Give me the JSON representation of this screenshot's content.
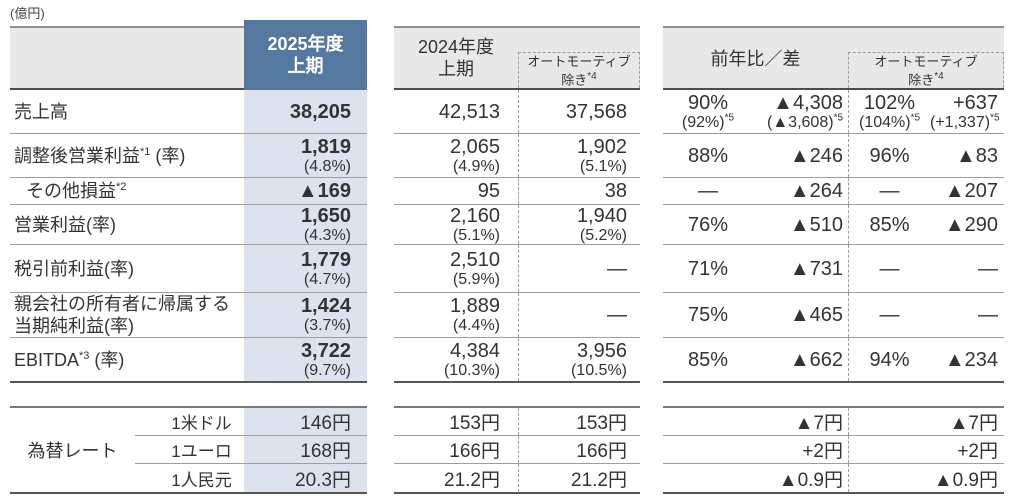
{
  "unit": "(億円)",
  "colors": {
    "header_blue": "#55789F",
    "highlight_col_bg": "#DCE3EE",
    "header_gray_bg": "#E8E8E8"
  },
  "headers": {
    "fy2025": {
      "line1": "2025年度",
      "line2": "上期"
    },
    "fy2024": {
      "line1": "2024年度",
      "line2": "上期"
    },
    "ex_auto": {
      "line1": "オートモーティブ",
      "line2": "除き",
      "sup": "*4"
    },
    "yoy": "前年比／差"
  },
  "rows": [
    {
      "id": "net-sales",
      "label": {
        "text": "売上高"
      },
      "cells": {
        "fy2025": {
          "value": "38,205"
        },
        "fy2024": {
          "value": "42,513"
        },
        "fy2024_ex_auto": {
          "value": "37,568"
        },
        "yoy_ratio": {
          "value": "90%",
          "sub": "(92%)",
          "sub_sup": "*5"
        },
        "yoy_diff": {
          "value": "▲4,308",
          "sub": "(▲3,608)",
          "sub_sup": "*5"
        },
        "yoy_ex_ratio": {
          "value": "102%",
          "sub": "(104%)",
          "sub_sup": "*5"
        },
        "yoy_ex_diff": {
          "value": "+637",
          "sub": "(+1,337)",
          "sub_sup": "*5"
        }
      }
    },
    {
      "id": "adjusted-operating-profit",
      "label": {
        "text": "調整後営業利益",
        "sup": "*1",
        "suffix": " (率)"
      },
      "cells": {
        "fy2025": {
          "value": "1,819",
          "sub": "(4.8%)"
        },
        "fy2024": {
          "value": "2,065",
          "sub": "(4.9%)"
        },
        "fy2024_ex_auto": {
          "value": "1,902",
          "sub": "(5.1%)"
        },
        "yoy_ratio": {
          "value": "88%"
        },
        "yoy_diff": {
          "value": "▲246"
        },
        "yoy_ex_ratio": {
          "value": "96%"
        },
        "yoy_ex_diff": {
          "value": "▲83"
        }
      }
    },
    {
      "id": "other-income-loss",
      "label": {
        "text": "その他損益",
        "sup": "*2",
        "indent": true
      },
      "cells": {
        "fy2025": {
          "value": "▲169"
        },
        "fy2024": {
          "value": "95"
        },
        "fy2024_ex_auto": {
          "value": "38"
        },
        "yoy_ratio": {
          "value": "—"
        },
        "yoy_diff": {
          "value": "▲264"
        },
        "yoy_ex_ratio": {
          "value": "—"
        },
        "yoy_ex_diff": {
          "value": "▲207"
        }
      }
    },
    {
      "id": "operating-profit",
      "label": {
        "text": "営業利益(率)"
      },
      "cells": {
        "fy2025": {
          "value": "1,650",
          "sub": "(4.3%)"
        },
        "fy2024": {
          "value": "2,160",
          "sub": "(5.1%)"
        },
        "fy2024_ex_auto": {
          "value": "1,940",
          "sub": "(5.2%)"
        },
        "yoy_ratio": {
          "value": "76%"
        },
        "yoy_diff": {
          "value": "▲510"
        },
        "yoy_ex_ratio": {
          "value": "85%"
        },
        "yoy_ex_diff": {
          "value": "▲290"
        }
      }
    },
    {
      "id": "profit-before-tax",
      "label": {
        "text": "税引前利益(率)"
      },
      "cells": {
        "fy2025": {
          "value": "1,779",
          "sub": "(4.7%)"
        },
        "fy2024": {
          "value": "2,510",
          "sub": "(5.9%)"
        },
        "fy2024_ex_auto": {
          "value": "—"
        },
        "yoy_ratio": {
          "value": "71%"
        },
        "yoy_diff": {
          "value": "▲731"
        },
        "yoy_ex_ratio": {
          "value": "—"
        },
        "yoy_ex_diff": {
          "value": "—"
        }
      }
    },
    {
      "id": "profit-attributable-to-owners",
      "label": {
        "text": "親会社の所有者に帰属する",
        "line2": "当期純利益(率)"
      },
      "cells": {
        "fy2025": {
          "value": "1,424",
          "sub": "(3.7%)"
        },
        "fy2024": {
          "value": "1,889",
          "sub": "(4.4%)"
        },
        "fy2024_ex_auto": {
          "value": "—"
        },
        "yoy_ratio": {
          "value": "75%"
        },
        "yoy_diff": {
          "value": "▲465"
        },
        "yoy_ex_ratio": {
          "value": "—"
        },
        "yoy_ex_diff": {
          "value": "—"
        }
      }
    },
    {
      "id": "ebitda",
      "label": {
        "text": "EBITDA",
        "sup": "*3",
        "suffix": " (率)"
      },
      "cells": {
        "fy2025": {
          "value": "3,722",
          "sub": "(9.7%)"
        },
        "fy2024": {
          "value": "4,384",
          "sub": "(10.3%)"
        },
        "fy2024_ex_auto": {
          "value": "3,956",
          "sub": "(10.5%)"
        },
        "yoy_ratio": {
          "value": "85%"
        },
        "yoy_diff": {
          "value": "▲662"
        },
        "yoy_ex_ratio": {
          "value": "94%"
        },
        "yoy_ex_diff": {
          "value": "▲234"
        }
      }
    }
  ],
  "fx": {
    "group_label": "為替レート",
    "rows": [
      {
        "id": "usd",
        "currency": "1米ドル",
        "fy2025": "146円",
        "fy2024": "153円",
        "fy2024_ex_auto": "153円",
        "yoy_diff": "▲7円",
        "yoy_ex_diff": "▲7円"
      },
      {
        "id": "eur",
        "currency": "1ユーロ",
        "fy2025": "168円",
        "fy2024": "166円",
        "fy2024_ex_auto": "166円",
        "yoy_diff": "+2円",
        "yoy_ex_diff": "+2円"
      },
      {
        "id": "cny",
        "currency": "1人民元",
        "fy2025": "20.3円",
        "fy2024": "21.2円",
        "fy2024_ex_auto": "21.2円",
        "yoy_diff": "▲0.9円",
        "yoy_ex_diff": "▲0.9円"
      }
    ]
  }
}
